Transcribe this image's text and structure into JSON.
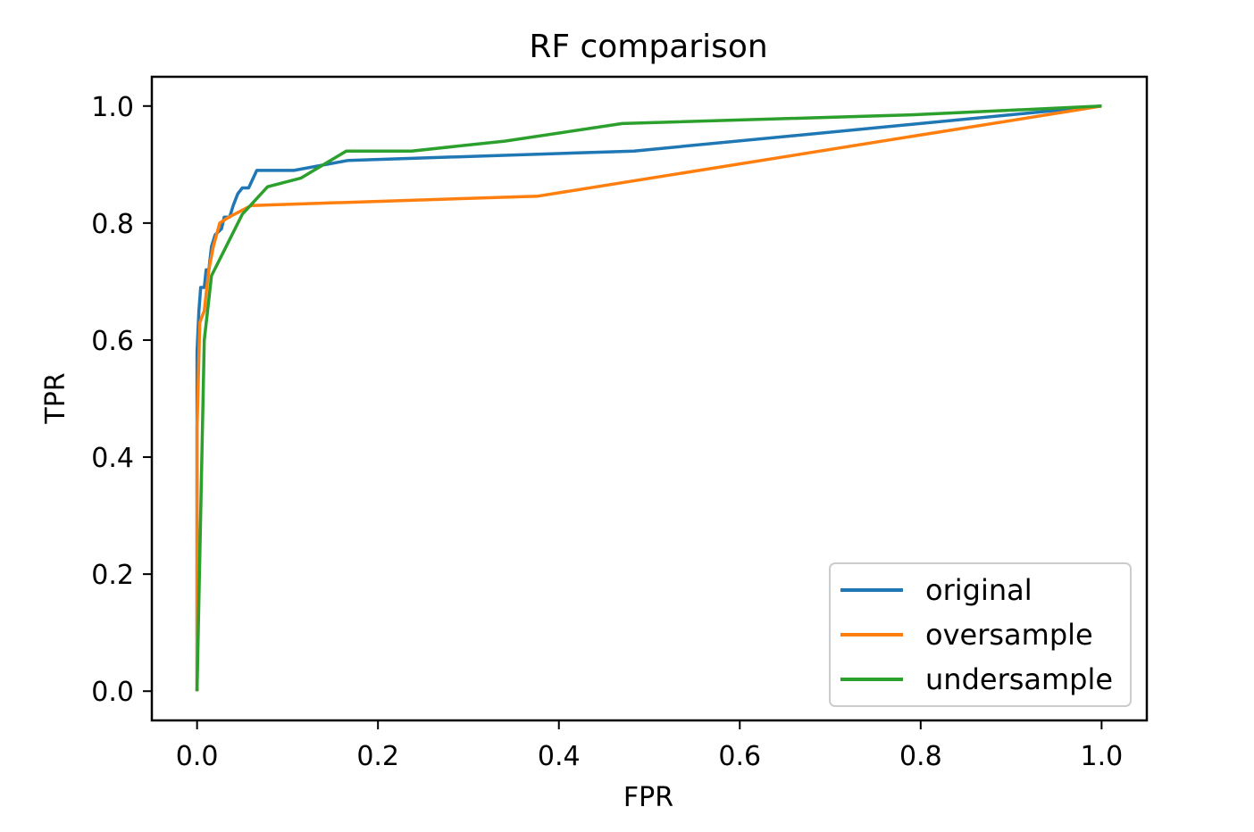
{
  "chart_data": {
    "type": "line",
    "title": "RF comparison",
    "xlabel": "FPR",
    "ylabel": "TPR",
    "xlim": [
      -0.05,
      1.05
    ],
    "ylim": [
      -0.05,
      1.05
    ],
    "xticks": [
      0.0,
      0.2,
      0.4,
      0.6,
      0.8,
      1.0
    ],
    "xtick_labels": [
      "0.0",
      "0.2",
      "0.4",
      "0.6",
      "0.8",
      "1.0"
    ],
    "yticks": [
      0.0,
      0.2,
      0.4,
      0.6,
      0.8,
      1.0
    ],
    "ytick_labels": [
      "0.0",
      "0.2",
      "0.4",
      "0.6",
      "0.8",
      "1.0"
    ],
    "grid": false,
    "legend_position": "lower-right",
    "series": [
      {
        "name": "original",
        "color": "#1f77b4",
        "points": [
          [
            0.0,
            0.0
          ],
          [
            0.0,
            0.17
          ],
          [
            0.0,
            0.58
          ],
          [
            0.002,
            0.65
          ],
          [
            0.004,
            0.69
          ],
          [
            0.008,
            0.69
          ],
          [
            0.01,
            0.72
          ],
          [
            0.013,
            0.72
          ],
          [
            0.016,
            0.76
          ],
          [
            0.02,
            0.78
          ],
          [
            0.027,
            0.79
          ],
          [
            0.03,
            0.81
          ],
          [
            0.036,
            0.81
          ],
          [
            0.04,
            0.83
          ],
          [
            0.045,
            0.85
          ],
          [
            0.05,
            0.86
          ],
          [
            0.057,
            0.86
          ],
          [
            0.066,
            0.89
          ],
          [
            0.107,
            0.89
          ],
          [
            0.167,
            0.907
          ],
          [
            0.483,
            0.923
          ],
          [
            1.0,
            1.0
          ]
        ]
      },
      {
        "name": "oversample",
        "color": "#ff7f0e",
        "points": [
          [
            0.0,
            0.0
          ],
          [
            0.0,
            0.45
          ],
          [
            0.003,
            0.63
          ],
          [
            0.008,
            0.65
          ],
          [
            0.013,
            0.72
          ],
          [
            0.018,
            0.76
          ],
          [
            0.025,
            0.8
          ],
          [
            0.035,
            0.81
          ],
          [
            0.06,
            0.83
          ],
          [
            0.377,
            0.846
          ],
          [
            1.0,
            1.0
          ]
        ]
      },
      {
        "name": "undersample",
        "color": "#2ca02c",
        "points": [
          [
            0.0,
            0.0
          ],
          [
            0.008,
            0.6
          ],
          [
            0.016,
            0.71
          ],
          [
            0.05,
            0.815
          ],
          [
            0.078,
            0.862
          ],
          [
            0.115,
            0.877
          ],
          [
            0.165,
            0.923
          ],
          [
            0.237,
            0.923
          ],
          [
            0.34,
            0.94
          ],
          [
            0.47,
            0.97
          ],
          [
            0.79,
            0.985
          ],
          [
            1.0,
            1.0
          ]
        ]
      }
    ]
  }
}
